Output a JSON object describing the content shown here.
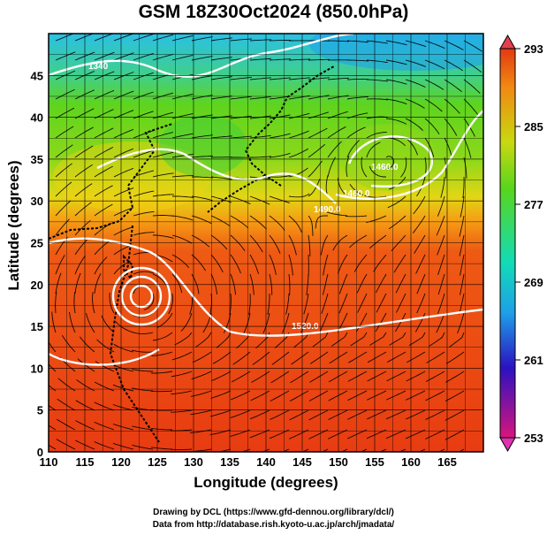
{
  "title": "GSM 18Z30Oct2024 (850.0hPa)",
  "xaxis": {
    "label": "Longitude (degrees)",
    "ticks": [
      "110",
      "115",
      "120",
      "125",
      "130",
      "135",
      "140",
      "145",
      "150",
      "155",
      "160",
      "165"
    ]
  },
  "yaxis": {
    "label": "Latitude  (degrees)",
    "ticks": [
      "0",
      "5",
      "10",
      "15",
      "20",
      "25",
      "30",
      "35",
      "40",
      "45"
    ]
  },
  "colorbar": {
    "ticks": [
      "293",
      "285",
      "277",
      "269",
      "261",
      "253"
    ],
    "colors": [
      "#d8157e",
      "#2b12c0",
      "#1e9ee8",
      "#12dcb6",
      "#58d51c",
      "#c9d810",
      "#f08a12",
      "#e23a12"
    ]
  },
  "contours": [
    "1460.0",
    "1460.0",
    "1460.0",
    "1490.0",
    "1520.0",
    "1520.0",
    "1340"
  ],
  "credits": [
    "Drawing by DCL (https://www.gfd-dennou.org/library/dcl/)",
    "Data from http://database.rish.kyoto-u.ac.jp/arch/jmadata/"
  ]
}
